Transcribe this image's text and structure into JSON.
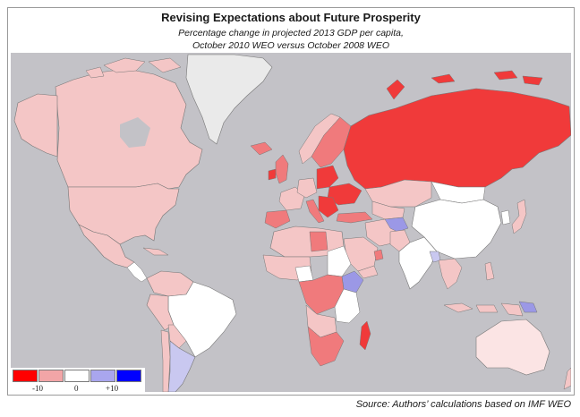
{
  "title": "Revising Expectations about Future Prosperity",
  "subtitle_line1": "Percentage change in projected 2013 GDP per capita,",
  "subtitle_line2": "October 2010 WEO versus October 2008 WEO",
  "source": "Source: Authors’ calculations based on IMF WEO",
  "legend": {
    "swatches": [
      {
        "color": "#ff0000"
      },
      {
        "color": "#f2a5a7"
      },
      {
        "color": "#ffffff"
      },
      {
        "color": "#a9a6ee"
      },
      {
        "color": "#0000ff"
      }
    ],
    "labels": [
      "-10",
      "0",
      "+10"
    ]
  },
  "colors": {
    "ocean": "#c3c2c7",
    "no_data": "#e6e6e6",
    "strong_decline": "#f03a3a",
    "decline": "#f07a7c",
    "mild_decline": "#f4c6c6",
    "neutral": "#ffffff",
    "mild_gain": "#c9c8f0",
    "gain": "#9b98e6"
  }
}
